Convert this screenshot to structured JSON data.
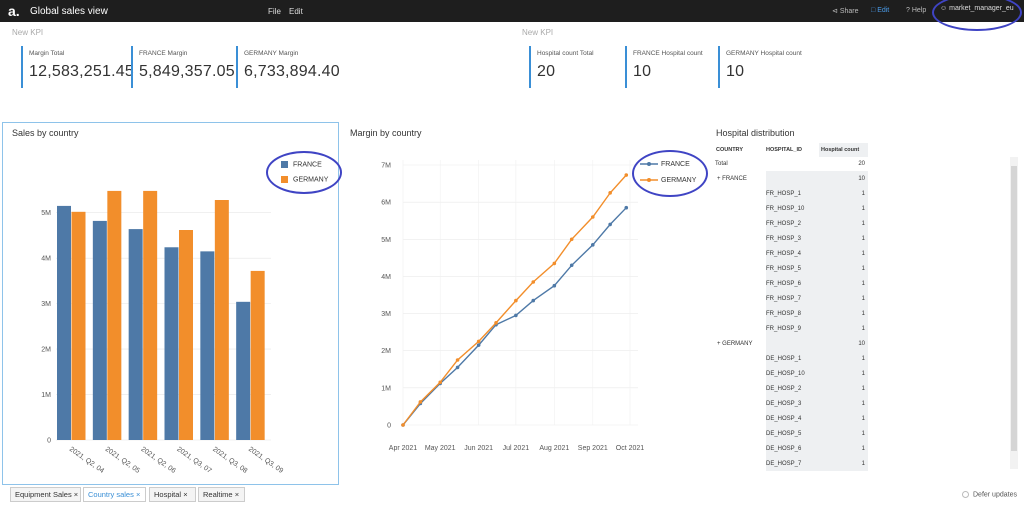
{
  "topbar": {
    "logo": "a.",
    "title": "Global sales view",
    "menu": [
      "File",
      "Edit"
    ],
    "share": "Share",
    "edit": "Edit",
    "help": "Help",
    "user": "market_manager_eu"
  },
  "kpi_left": {
    "title": "New KPI",
    "items": [
      {
        "label": "Margin Total",
        "value": "12,583,251.45"
      },
      {
        "label": "FRANCE Margin",
        "value": "5,849,357.05"
      },
      {
        "label": "GERMANY Margin",
        "value": "6,733,894.40"
      }
    ]
  },
  "kpi_right": {
    "title": "New KPI",
    "items": [
      {
        "label": "Hospital count Total",
        "value": "20"
      },
      {
        "label": "FRANCE Hospital count",
        "value": "10"
      },
      {
        "label": "GERMANY Hospital count",
        "value": "10"
      }
    ]
  },
  "colors": {
    "france": "#4e79a7",
    "germany": "#f28e2b",
    "accent": "#3a8fd6",
    "annotation": "#3f44c4"
  },
  "chart_data": [
    {
      "type": "bar",
      "title": "Sales by country",
      "categories": [
        "2021, Q2, 04",
        "2021, Q2, 05",
        "2021, Q2, 06",
        "2021, Q3, 07",
        "2021, Q3, 08",
        "2021, Q3, 09"
      ],
      "series": [
        {
          "name": "FRANCE",
          "values": [
            5150000,
            4820000,
            4640000,
            4240000,
            4150000,
            3040000
          ]
        },
        {
          "name": "GERMANY",
          "values": [
            5020000,
            5480000,
            5480000,
            4620000,
            5280000,
            3720000
          ]
        }
      ],
      "yticks": [
        "0",
        "1M",
        "2M",
        "3M",
        "4M",
        "5M"
      ],
      "ylim": [
        0,
        5500000
      ],
      "legend": "top-right"
    },
    {
      "type": "line",
      "title": "Margin by country",
      "x": [
        "2021-04-01",
        "2021-04-15",
        "2021-05-01",
        "2021-05-15",
        "2021-06-01",
        "2021-06-15",
        "2021-07-01",
        "2021-07-15",
        "2021-08-01",
        "2021-08-15",
        "2021-09-01",
        "2021-09-15",
        "2021-09-28"
      ],
      "series": [
        {
          "name": "FRANCE",
          "values": [
            0,
            580000,
            1120000,
            1550000,
            2150000,
            2700000,
            2950000,
            3350000,
            3750000,
            4300000,
            4850000,
            5400000,
            5850000
          ]
        },
        {
          "name": "GERMANY",
          "values": [
            0,
            620000,
            1150000,
            1750000,
            2250000,
            2750000,
            3350000,
            3850000,
            4350000,
            5000000,
            5600000,
            6250000,
            6730000
          ]
        }
      ],
      "xticks": [
        "Apr 2021",
        "May 2021",
        "Jun 2021",
        "Jul 2021",
        "Aug 2021",
        "Sep 2021",
        "Oct 2021"
      ],
      "yticks": [
        "0",
        "1M",
        "2M",
        "3M",
        "4M",
        "5M",
        "6M",
        "7M"
      ],
      "ylim": [
        0,
        7000000
      ],
      "legend": "top-right"
    }
  ],
  "hospital": {
    "title": "Hospital distribution",
    "headers": [
      "COUNTRY",
      "HOSPITAL_ID",
      "Hospital count"
    ],
    "rows": [
      {
        "country": "Total",
        "id": "",
        "count": "20",
        "expand": ""
      },
      {
        "country": "FRANCE",
        "id": "",
        "count": "10",
        "expand": "+"
      },
      {
        "country": "",
        "id": "FR_HOSP_1",
        "count": "1",
        "expand": ""
      },
      {
        "country": "",
        "id": "FR_HOSP_10",
        "count": "1",
        "expand": ""
      },
      {
        "country": "",
        "id": "FR_HOSP_2",
        "count": "1",
        "expand": ""
      },
      {
        "country": "",
        "id": "FR_HOSP_3",
        "count": "1",
        "expand": ""
      },
      {
        "country": "",
        "id": "FR_HOSP_4",
        "count": "1",
        "expand": ""
      },
      {
        "country": "",
        "id": "FR_HOSP_5",
        "count": "1",
        "expand": ""
      },
      {
        "country": "",
        "id": "FR_HOSP_6",
        "count": "1",
        "expand": ""
      },
      {
        "country": "",
        "id": "FR_HOSP_7",
        "count": "1",
        "expand": ""
      },
      {
        "country": "",
        "id": "FR_HOSP_8",
        "count": "1",
        "expand": ""
      },
      {
        "country": "",
        "id": "FR_HOSP_9",
        "count": "1",
        "expand": ""
      },
      {
        "country": "GERMANY",
        "id": "",
        "count": "10",
        "expand": "+"
      },
      {
        "country": "",
        "id": "DE_HOSP_1",
        "count": "1",
        "expand": ""
      },
      {
        "country": "",
        "id": "DE_HOSP_10",
        "count": "1",
        "expand": ""
      },
      {
        "country": "",
        "id": "DE_HOSP_2",
        "count": "1",
        "expand": ""
      },
      {
        "country": "",
        "id": "DE_HOSP_3",
        "count": "1",
        "expand": ""
      },
      {
        "country": "",
        "id": "DE_HOSP_4",
        "count": "1",
        "expand": ""
      },
      {
        "country": "",
        "id": "DE_HOSP_5",
        "count": "1",
        "expand": ""
      },
      {
        "country": "",
        "id": "DE_HOSP_6",
        "count": "1",
        "expand": ""
      },
      {
        "country": "",
        "id": "DE_HOSP_7",
        "count": "1",
        "expand": ""
      }
    ]
  },
  "tabs": [
    {
      "label": "Equipment Sales",
      "close": "×"
    },
    {
      "label": "Country sales",
      "close": "×"
    },
    {
      "label": "Hospital",
      "close": "×"
    },
    {
      "label": "Realtime",
      "close": "×"
    }
  ],
  "defer_updates": "Defer updates"
}
